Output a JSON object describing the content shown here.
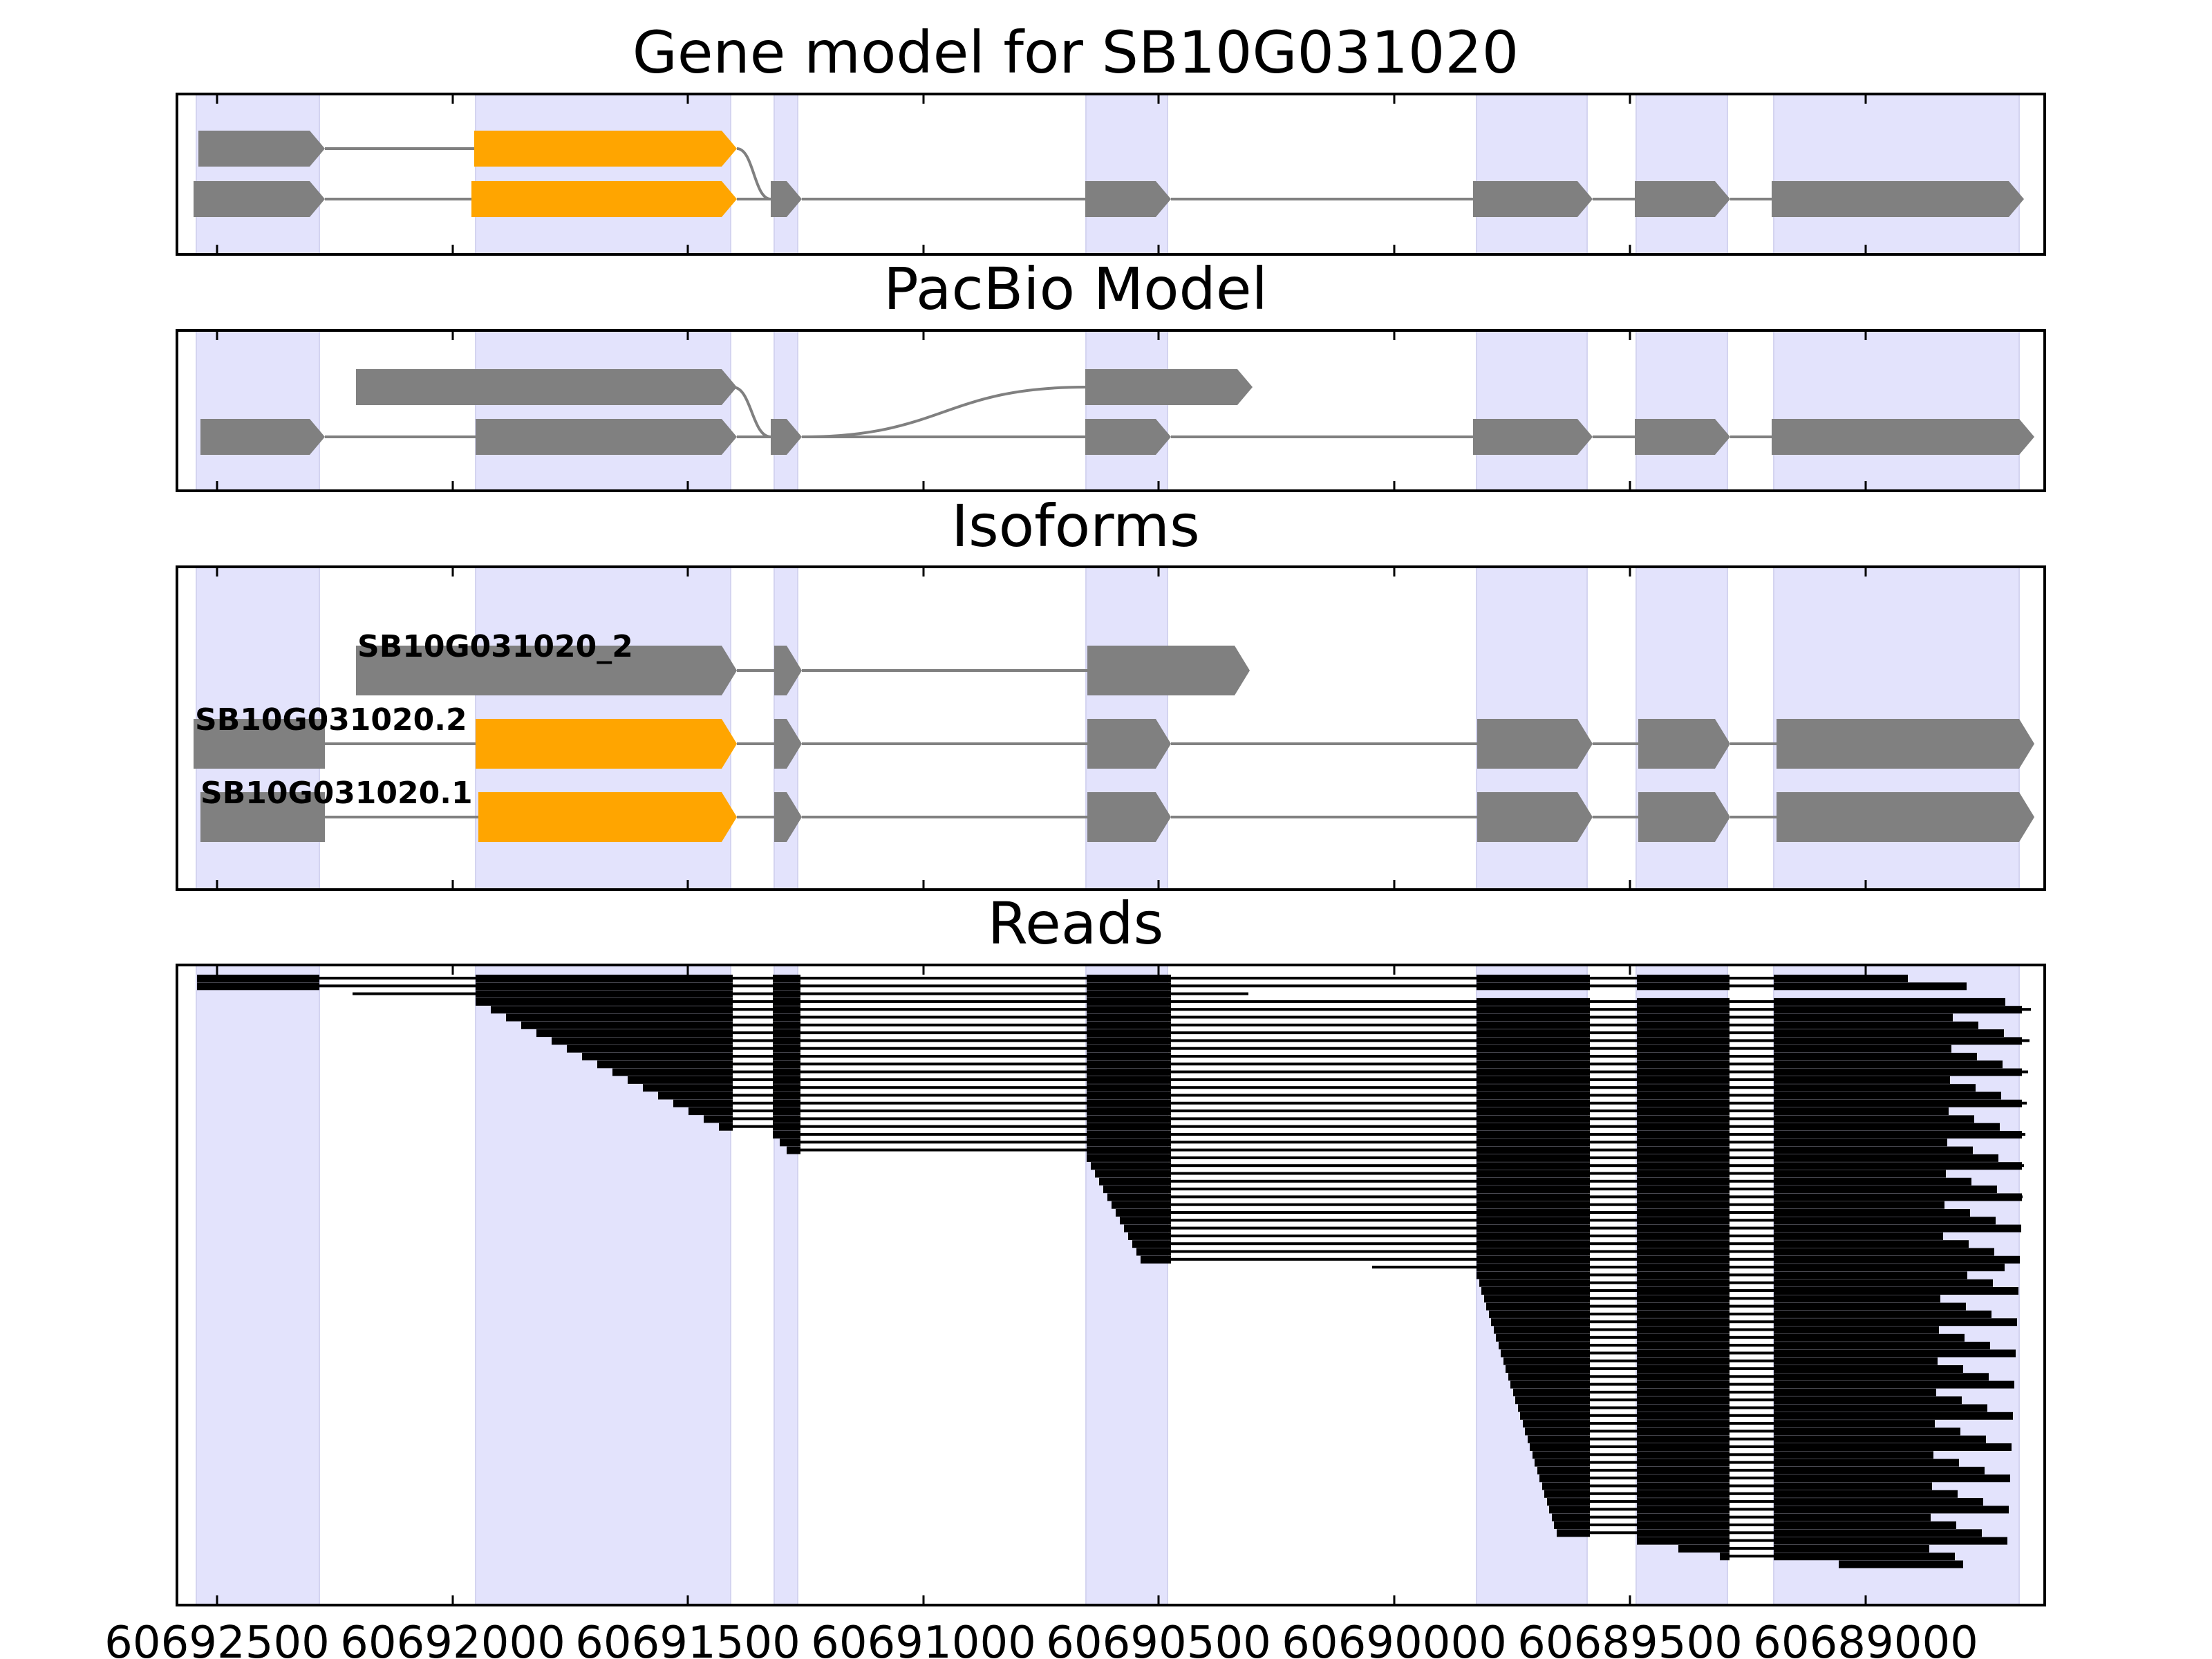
{
  "figure": {
    "panels": [
      {
        "id": "gene-model",
        "title": "Gene model for SB10G031020"
      },
      {
        "id": "pacbio-model",
        "title": "PacBio Model"
      },
      {
        "id": "isoforms",
        "title": "Isoforms"
      },
      {
        "id": "reads",
        "title": "Reads"
      }
    ],
    "x_axis": {
      "orientation": "reversed (genomic minus strand)",
      "range": [
        60692650,
        60688300
      ],
      "ticks": [
        60692500,
        60692000,
        60691500,
        60691000,
        60690500,
        60690000,
        60689500,
        60689000
      ],
      "tick_labels": [
        "60692500",
        "60692000",
        "60691500",
        "60691000",
        "60690500",
        "60690000",
        "60689500",
        "60689000"
      ]
    },
    "colors": {
      "exon": "#808080",
      "cds_highlight": "#FFA500",
      "exon_band": "#E3E3FC",
      "intron_line": "#808080",
      "read": "#000000"
    },
    "isoform_labels": [
      "SB10G031020_2",
      "SB10G031020.2",
      "SB10G031020.1"
    ]
  }
}
